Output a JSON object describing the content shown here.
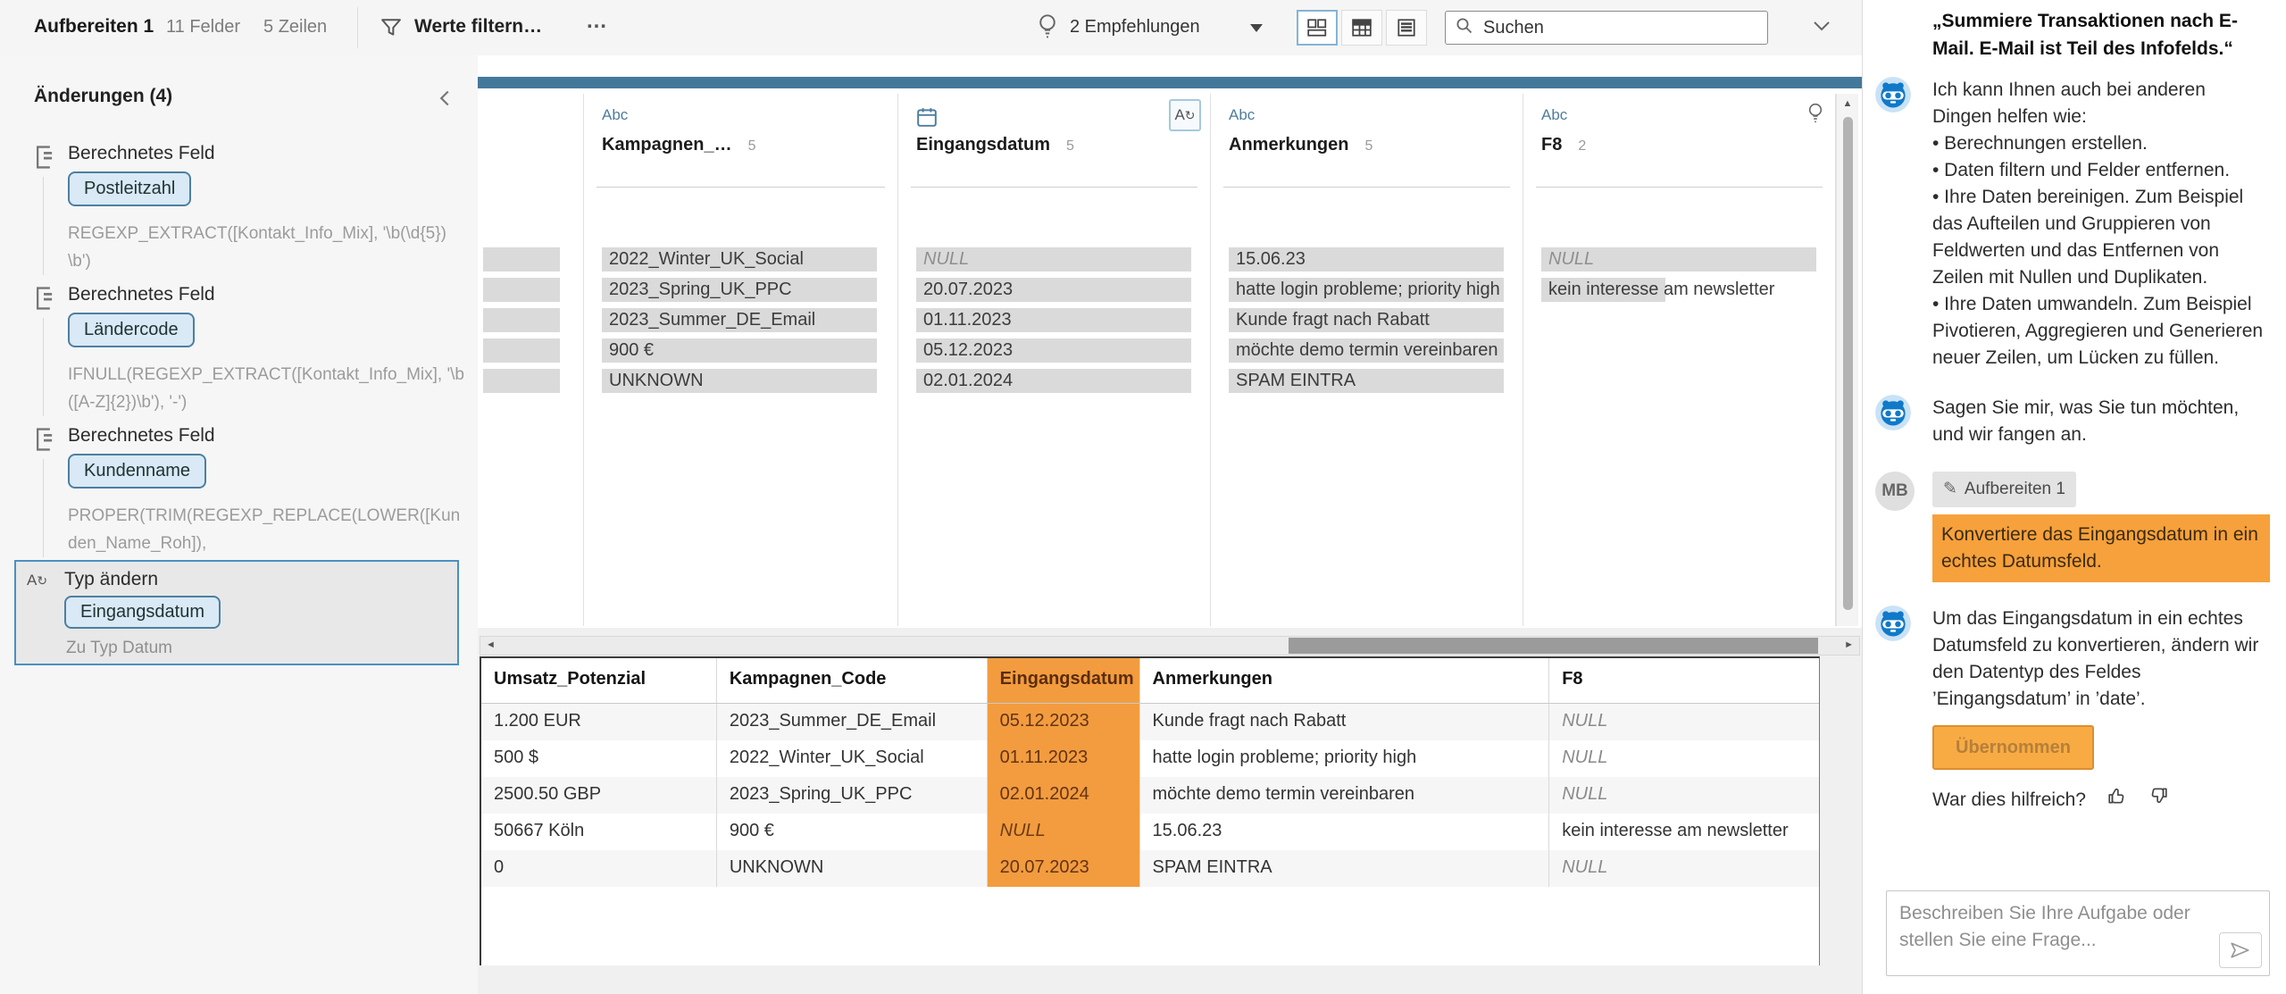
{
  "toolbar": {
    "flow_name": "Aufbereiten 1",
    "fields_count": "11 Felder",
    "rows_count": "5 Zeilen",
    "filter_label": "Werte filtern…",
    "more_label": "…",
    "recommendations_label": "2 Empfehlungen",
    "search_placeholder": "Suchen"
  },
  "sidebar": {
    "title": "Änderungen (4)",
    "items": [
      {
        "kind": "calc",
        "type_label": "Berechnetes Feld",
        "field": "Postleitzahl",
        "detail": "REGEXP_EXTRACT([Kontakt_Info_Mix], '\\b(\\d{5})\\b')",
        "selected": false
      },
      {
        "kind": "calc",
        "type_label": "Berechnetes Feld",
        "field": "Ländercode",
        "detail": "IFNULL(REGEXP_EXTRACT([Kontakt_Info_Mix], '\\b([A-Z]{2})\\b'), '-')",
        "selected": false
      },
      {
        "kind": "calc",
        "type_label": "Berechnetes Feld",
        "field": "Kundenname",
        "detail": "PROPER(TRIM(REGEXP_REPLACE(LOWER([Kunden_Name_Roh]),",
        "selected": false
      },
      {
        "kind": "type",
        "type_label": "Typ ändern",
        "field": "Eingangsdatum",
        "detail": "Zu Typ Datum",
        "selected": true
      }
    ]
  },
  "profile": {
    "partial_card_bars": 5,
    "cards": [
      {
        "name": "Kampagnen_…",
        "type": "Abc",
        "count": "5",
        "values": [
          {
            "text": "2022_Winter_UK_Social",
            "bar": 1
          },
          {
            "text": "2023_Spring_UK_PPC",
            "bar": 1
          },
          {
            "text": "2023_Summer_DE_Email",
            "bar": 1
          },
          {
            "text": "900 €",
            "bar": 1
          },
          {
            "text": "UNKNOWN",
            "bar": 1
          }
        ]
      },
      {
        "name": "Eingangsdatum",
        "type": "date",
        "count": "5",
        "type_changed_badge": true,
        "values": [
          {
            "text": "NULL",
            "null": true,
            "bar": 1
          },
          {
            "text": "20.07.2023",
            "bar": 1
          },
          {
            "text": "01.11.2023",
            "bar": 1
          },
          {
            "text": "05.12.2023",
            "bar": 1
          },
          {
            "text": "02.01.2024",
            "bar": 1
          }
        ]
      },
      {
        "name": "Anmerkungen",
        "type": "Abc",
        "count": "5",
        "values": [
          {
            "text": "15.06.23",
            "bar": 1
          },
          {
            "text": "hatte login probleme; priority high",
            "bar": 1
          },
          {
            "text": "Kunde fragt nach Rabatt",
            "bar": 1
          },
          {
            "text": "möchte demo termin vereinbaren",
            "bar": 1
          },
          {
            "text": "SPAM EINTRA",
            "bar": 1
          }
        ]
      },
      {
        "name": "F8",
        "type": "Abc",
        "count": "2",
        "recommendation_bulb": true,
        "values": [
          {
            "text": "NULL",
            "null": true,
            "bar": 1
          },
          {
            "text": "kein interesse am newsletter",
            "bar": 0.45
          }
        ]
      }
    ]
  },
  "grid": {
    "columns": [
      "Umsatz_Potenzial",
      "Kampagnen_Code",
      "Eingangsdatum",
      "Anmerkungen",
      "F8"
    ],
    "highlighted_column": "Eingangsdatum",
    "rows": [
      [
        "1.200 EUR",
        "2023_Summer_DE_Email",
        "05.12.2023",
        "Kunde fragt nach Rabatt",
        "NULL"
      ],
      [
        "500 $",
        "2022_Winter_UK_Social",
        "01.11.2023",
        "hatte login probleme; priority high",
        "NULL"
      ],
      [
        "2500.50 GBP",
        "2023_Spring_UK_PPC",
        "02.01.2024",
        "möchte demo termin vereinbaren",
        "NULL"
      ],
      [
        "50667 Köln",
        "900 €",
        "NULL",
        "15.06.23",
        "kein interesse am newsletter"
      ],
      [
        "0",
        "UNKNOWN",
        "20.07.2023",
        "SPAM EINTRA",
        "NULL"
      ]
    ]
  },
  "chat": {
    "quote": "„Summiere Transaktionen nach E-Mail. E-Mail ist Teil des Infofelds.“",
    "messages": [
      {
        "role": "assistant",
        "paragraphs": [
          "Ich kann Ihnen auch bei anderen Dingen helfen wie:",
          "• Berechnungen erstellen.",
          "• Daten filtern und Felder entfernen.",
          "• Ihre Daten bereinigen. Zum Beispiel das Aufteilen und Gruppieren von Feldwerten und das Entfernen von Zeilen mit Nullen und Duplikaten.",
          "• Ihre Daten umwandeln. Zum Beispiel Pivotieren, Aggregieren und Generieren neuer Zeilen, um Lücken zu füllen."
        ]
      },
      {
        "role": "assistant",
        "paragraphs": [
          "Sagen Sie mir, was Sie tun möchten, und wir fangen an."
        ]
      },
      {
        "role": "user",
        "avatar_initials": "MB",
        "chip": "Aufbereiten 1",
        "highlight": true,
        "paragraphs": [
          "Konvertiere das Eingangsdatum in ein echtes Datumsfeld."
        ]
      },
      {
        "role": "assistant",
        "paragraphs": [
          "Um das Eingangsdatum in ein echtes Datumsfeld zu konvertieren, ändern wir den Datentyp des Feldes ’Eingangsdatum’ in ’date’."
        ],
        "action_button": "Übernommen",
        "helpful_label": "War dies hilfreich?"
      }
    ],
    "input_placeholder": "Beschreiben Sie Ihre Aufgabe oder stellen Sie eine Frage..."
  },
  "colors": {
    "accent_orange": "#f29c3f",
    "user_message_orange": "#f6a13c",
    "selection_blue": "#4a90c2",
    "profile_scrollbar_blue": "#44789b",
    "assistant_blue": "#1079c9"
  }
}
